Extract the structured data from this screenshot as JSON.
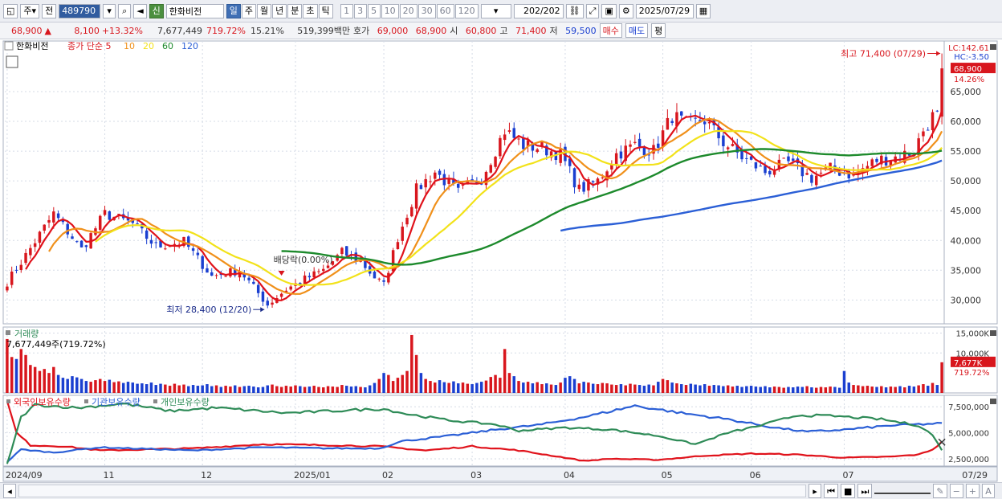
{
  "toolbar": {
    "market_label": "주",
    "prev_label": "전",
    "code": "489790",
    "new_badge": "신",
    "name": "한화비전",
    "periods": [
      "일",
      "주",
      "월",
      "년",
      "분",
      "초",
      "틱"
    ],
    "active_period": "일",
    "minute_presets": [
      "1",
      "3",
      "5",
      "10",
      "20",
      "30",
      "60",
      "120"
    ],
    "count": "202",
    "total": "/202",
    "date": "2025/07/29"
  },
  "quote": {
    "price": "68,900",
    "change": "8,100",
    "change_pct": "+13.32%",
    "volume": "7,677,449",
    "volume_ratio": "719.72%",
    "turnover": "15.21%",
    "amount": "519,399백만",
    "bid_label": "호가",
    "bid": "69,000",
    "ask": "68,900",
    "open_label": "시",
    "open": "60,800",
    "high_label": "고",
    "high": "71,400",
    "low_label": "저",
    "low": "59,500",
    "buy_label": "매수",
    "sell_label": "매도",
    "eval_label": "평"
  },
  "colors": {
    "up": "#d8161d",
    "down": "#1a3fd0",
    "ma5": "#e0121b",
    "ma10": "#f0901a",
    "ma20": "#f2e21a",
    "ma60": "#1d8a2c",
    "ma120": "#2b5fd6",
    "foreign": "#e0121b",
    "institution": "#2b5fd6",
    "individual": "#2e8b57",
    "grid": "#d5dbe6"
  },
  "chart_data": [
    {
      "type": "candlestick",
      "legend": {
        "name": "한화비전",
        "ma_prefix": "종가 단순",
        "ma_periods": [
          "5",
          "10",
          "20",
          "60",
          "120"
        ]
      },
      "info": {
        "lc": "LC:142.61",
        "hc": "HC:-3.50",
        "last": "68,900",
        "last_pct": "14.26%"
      },
      "y_ticks": [
        30000,
        35000,
        40000,
        45000,
        50000,
        55000,
        60000,
        65000
      ],
      "ylim": [
        26000,
        73500
      ],
      "x_labels": [
        {
          "label": "2024/09",
          "idx": 0
        },
        {
          "label": "11",
          "idx": 21
        },
        {
          "label": "12",
          "idx": 42
        },
        {
          "label": "2025/01",
          "idx": 62
        },
        {
          "label": "02",
          "idx": 81
        },
        {
          "label": "03",
          "idx": 100
        },
        {
          "label": "04",
          "idx": 120
        },
        {
          "label": "05",
          "idx": 141
        },
        {
          "label": "06",
          "idx": 160
        },
        {
          "label": "07",
          "idx": 180
        }
      ],
      "x_end_label": "07/29",
      "annotations": {
        "high": {
          "text": "최고 71,400 (07/29)",
          "value": 71400,
          "idx": 201
        },
        "low": {
          "text": "최저 28,400 (12/20)",
          "value": 28400,
          "idx": 56
        },
        "dividend": {
          "text": "배당락(0.00%)",
          "idx": 59
        }
      },
      "close_anchors": [
        [
          0,
          33000
        ],
        [
          4,
          37500
        ],
        [
          10,
          44500
        ],
        [
          16,
          38500
        ],
        [
          21,
          44500
        ],
        [
          27,
          42800
        ],
        [
          32,
          39000
        ],
        [
          38,
          39800
        ],
        [
          44,
          34000
        ],
        [
          50,
          35000
        ],
        [
          56,
          29200
        ],
        [
          60,
          31800
        ],
        [
          64,
          33500
        ],
        [
          68,
          35000
        ],
        [
          72,
          38000
        ],
        [
          76,
          36500
        ],
        [
          79,
          33800
        ],
        [
          81,
          32500
        ],
        [
          84,
          40500
        ],
        [
          88,
          48500
        ],
        [
          92,
          51500
        ],
        [
          97,
          48000
        ],
        [
          102,
          50500
        ],
        [
          107,
          58500
        ],
        [
          111,
          56000
        ],
        [
          115,
          55500
        ],
        [
          119,
          54500
        ],
        [
          123,
          48500
        ],
        [
          127,
          50000
        ],
        [
          131,
          54500
        ],
        [
          135,
          56000
        ],
        [
          139,
          55000
        ],
        [
          143,
          61000
        ],
        [
          146,
          59500
        ],
        [
          150,
          60200
        ],
        [
          154,
          56500
        ],
        [
          158,
          54000
        ],
        [
          163,
          51500
        ],
        [
          168,
          53000
        ],
        [
          173,
          50500
        ],
        [
          177,
          52000
        ],
        [
          182,
          51000
        ],
        [
          187,
          53500
        ],
        [
          191,
          54000
        ],
        [
          195,
          55000
        ],
        [
          197,
          58500
        ],
        [
          199,
          60800
        ],
        [
          200,
          60800
        ],
        [
          201,
          68900
        ]
      ],
      "sessions": 202
    },
    {
      "type": "bar",
      "title": "거래량",
      "info": "7,677,449주(719.72%)",
      "y_ticks": [
        {
          "label": "15,000K",
          "value": 15000000
        },
        {
          "label": "10,000K",
          "value": 10000000
        }
      ],
      "ylim": [
        0,
        16500000
      ],
      "last_label": "7,677K",
      "last_pct": "719.72%",
      "values_k": [
        13500,
        9000,
        8500,
        11000,
        9500,
        7000,
        6500,
        5500,
        6000,
        5000,
        6500,
        4500,
        3800,
        3500,
        4200,
        3900,
        3500,
        3000,
        2800,
        3200,
        3500,
        3000,
        3300,
        2700,
        2900,
        2500,
        2800,
        2600,
        2300,
        2400,
        2200,
        2600,
        2000,
        2300,
        2100,
        1800,
        2300,
        1900,
        2100,
        1700,
        2000,
        1800,
        1900,
        2200,
        1700,
        1900,
        1500,
        1800,
        1600,
        1900,
        1500,
        1700,
        1800,
        1600,
        1400,
        1500,
        1900,
        2100,
        1700,
        1500,
        1800,
        1600,
        1900,
        1700,
        1500,
        1600,
        1800,
        1500,
        1400,
        1700,
        1600,
        1500,
        2000,
        1800,
        1600,
        1700,
        1500,
        1400,
        1900,
        2500,
        3500,
        5000,
        4500,
        3000,
        3800,
        4500,
        5500,
        14500,
        9500,
        5000,
        3500,
        3000,
        2600,
        3200,
        2700,
        2500,
        2900,
        2400,
        2600,
        2300,
        2200,
        2500,
        2800,
        3100,
        4000,
        4500,
        3800,
        11000,
        5000,
        4200,
        3000,
        2600,
        2800,
        2400,
        2700,
        2200,
        2400,
        2100,
        2000,
        2600,
        3800,
        4200,
        3500,
        2400,
        2800,
        2600,
        2300,
        2200,
        2500,
        2400,
        2100,
        2000,
        2200,
        1900,
        2300,
        2100,
        2000,
        1800,
        2100,
        1900,
        2800,
        3500,
        3200,
        2600,
        2400,
        2200,
        2000,
        2300,
        2100,
        1900,
        2200,
        1800,
        2000,
        1900,
        1700,
        1900,
        1600,
        1800,
        1500,
        1700,
        1800,
        1600,
        1500,
        1700,
        1400,
        1600,
        1500,
        1300,
        1500,
        1400,
        1600,
        1500,
        1700,
        1400,
        1300,
        1500,
        1400,
        1600,
        1500,
        1300,
        5500,
        2600,
        2000,
        1900,
        1700,
        1800,
        1600,
        1500,
        1700,
        1400,
        1600,
        1500,
        1700,
        1400,
        1800,
        1600,
        1900,
        2200,
        1800,
        2500,
        2000,
        7677
      ]
    },
    {
      "type": "line",
      "legend": [
        "외국인보유수량",
        "기관보유수량",
        "개인보유수량"
      ],
      "y_ticks": [
        {
          "label": "7,500,000",
          "value": 7500000
        },
        {
          "label": "5,000,000",
          "value": 5000000
        },
        {
          "label": "2,500,000",
          "value": 2500000
        }
      ],
      "ylim": [
        1800000,
        8600000
      ],
      "series": [
        {
          "name": "외국인보유수량",
          "anchors": [
            [
              0,
              8000000
            ],
            [
              2,
              5000000
            ],
            [
              5,
              3800000
            ],
            [
              12,
              3700000
            ],
            [
              20,
              3300000
            ],
            [
              40,
              3500000
            ],
            [
              55,
              3900000
            ],
            [
              70,
              3800000
            ],
            [
              80,
              3700000
            ],
            [
              90,
              3300000
            ],
            [
              100,
              3700000
            ],
            [
              110,
              3300000
            ],
            [
              120,
              2600000
            ],
            [
              124,
              2300000
            ],
            [
              130,
              2500000
            ],
            [
              140,
              2400000
            ],
            [
              150,
              2800000
            ],
            [
              160,
              3000000
            ],
            [
              170,
              2900000
            ],
            [
              180,
              2600000
            ],
            [
              190,
              2700000
            ],
            [
              196,
              2900000
            ],
            [
              199,
              3400000
            ],
            [
              201,
              4100000
            ]
          ]
        },
        {
          "name": "기관보유수량",
          "anchors": [
            [
              0,
              2200000
            ],
            [
              3,
              3400000
            ],
            [
              10,
              3100000
            ],
            [
              20,
              3600000
            ],
            [
              40,
              3300000
            ],
            [
              55,
              3600000
            ],
            [
              70,
              3500000
            ],
            [
              80,
              3500000
            ],
            [
              85,
              4200000
            ],
            [
              95,
              4700000
            ],
            [
              105,
              5300000
            ],
            [
              115,
              5800000
            ],
            [
              125,
              6600000
            ],
            [
              135,
              7600000
            ],
            [
              145,
              6900000
            ],
            [
              155,
              6300000
            ],
            [
              165,
              5500000
            ],
            [
              172,
              5100000
            ],
            [
              180,
              5300000
            ],
            [
              190,
              5700000
            ],
            [
              201,
              5900000
            ]
          ]
        },
        {
          "name": "개인보유수량",
          "anchors": [
            [
              0,
              2000000
            ],
            [
              3,
              6500000
            ],
            [
              6,
              7700000
            ],
            [
              15,
              7400000
            ],
            [
              25,
              7800000
            ],
            [
              35,
              7100000
            ],
            [
              45,
              7400000
            ],
            [
              60,
              6900000
            ],
            [
              75,
              7200000
            ],
            [
              81,
              7300000
            ],
            [
              86,
              6800000
            ],
            [
              95,
              6200000
            ],
            [
              105,
              5800000
            ],
            [
              110,
              5200000
            ],
            [
              120,
              5500000
            ],
            [
              130,
              5300000
            ],
            [
              140,
              4700000
            ],
            [
              148,
              3900000
            ],
            [
              155,
              5000000
            ],
            [
              162,
              5700000
            ],
            [
              170,
              6700000
            ],
            [
              178,
              6600000
            ],
            [
              188,
              6300000
            ],
            [
              196,
              5700000
            ],
            [
              199,
              4800000
            ],
            [
              201,
              3300000
            ]
          ]
        }
      ]
    }
  ],
  "statusbar": {
    "icons": [
      "scroll-right",
      "first",
      "stop",
      "last",
      "zoom-out",
      "zoom-in",
      "add"
    ]
  }
}
